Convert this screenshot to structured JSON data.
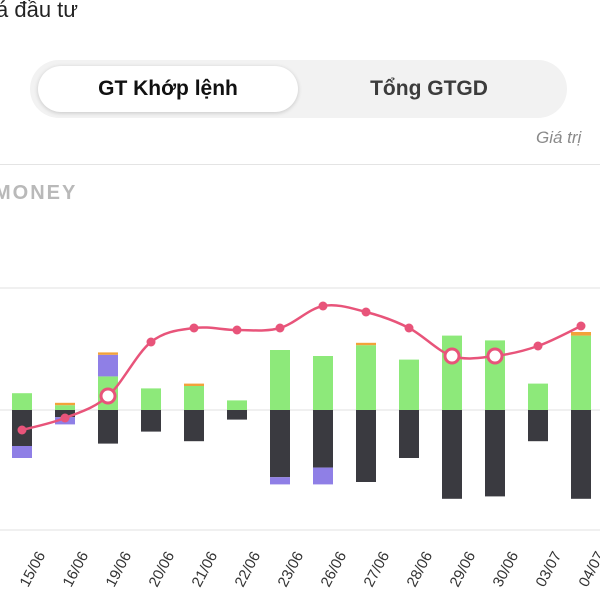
{
  "header": {
    "title_fragment": "á đầu tư"
  },
  "tabs": [
    {
      "label": "GT Khớp lệnh",
      "active": true
    },
    {
      "label": "Tổng GTGD",
      "active": false
    }
  ],
  "note_fragment": "Giá trị",
  "watermark": "MONEY",
  "colors": {
    "line": "#e8547a",
    "green": "#8de97a",
    "dark": "#3a3a40",
    "purple": "#8f7fe6",
    "orange": "#f2a23a",
    "blue": "#6aa4e6",
    "grid": "#e2e2e2"
  },
  "chart_data": {
    "type": "bar",
    "categories": [
      "15/06",
      "16/06",
      "19/06",
      "20/06",
      "21/06",
      "22/06",
      "23/06",
      "26/06",
      "27/06",
      "28/06",
      "29/06",
      "30/06",
      "03/07",
      "04/07"
    ],
    "series": [
      {
        "values": [
          14,
          4,
          28,
          18,
          20,
          8,
          50,
          45,
          54,
          42,
          62,
          58,
          22,
          62
        ]
      },
      {
        "values": [
          -30,
          -6,
          -28,
          -18,
          -26,
          -8,
          -56,
          -48,
          -60,
          -40,
          -74,
          -72,
          -26,
          -74
        ]
      },
      {
        "values": [
          -10,
          -6,
          18,
          0,
          0,
          0,
          -6,
          -14,
          0,
          0,
          0,
          0,
          0,
          0
        ]
      },
      {
        "values": [
          0,
          2,
          2,
          0,
          2,
          0,
          0,
          0,
          2,
          0,
          0,
          0,
          0,
          3
        ]
      }
    ],
    "line": {
      "values": [
        -20,
        -8,
        14,
        68,
        82,
        80,
        82,
        104,
        98,
        82,
        54,
        54,
        64,
        84
      ],
      "marked": [
        2,
        10,
        11
      ]
    }
  }
}
